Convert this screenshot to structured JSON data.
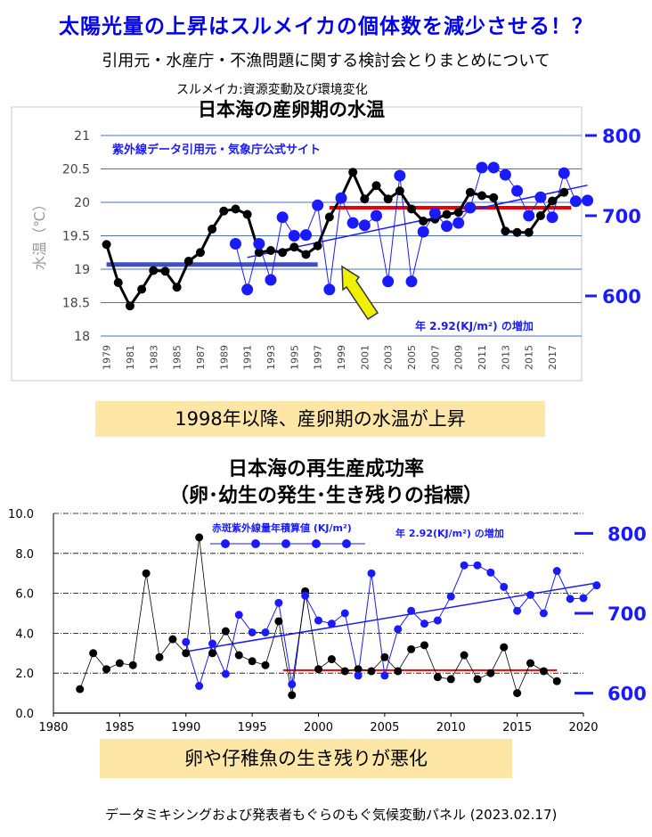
{
  "header": {
    "title": "太陽光量の上昇はスルメイカの個体数を減少させる！？",
    "subtitle": "引用元・水産庁・不漁問題に関する検討会とりまとめについて",
    "source": "スルメイカ:資源変動及び環境変化"
  },
  "banners": {
    "top": "1998年以降、産卵期の水温が上昇",
    "bottom": "卵や仔稚魚の生き残りが悪化"
  },
  "chart2_heading": {
    "line1": "日本海の再生産成功率",
    "line2": "（卵･幼生の発生･生き残りの指標）"
  },
  "footer": "データミキシングおよび発表者もぐらのもぐ気候変動パネル (2023.02.17)",
  "colors": {
    "temperature_line": "#000000",
    "uv_line": "#1a1aff",
    "pre1998_mean": "#4050c0",
    "post1998_mean": "#ee0000",
    "arrow": "#f0f000",
    "banner": "#fde6a6",
    "title": "#0000ee"
  },
  "chart_data": [
    {
      "type": "line",
      "title": "日本海の産卵期の水温",
      "annotation_source": "紫外線データ引用元・気象庁公式サイト",
      "annotation_increase": "年 2.92(KJ/m²) の増加",
      "ylabel": "水温（℃）",
      "ylim": [
        18,
        21
      ],
      "y_ticks": [
        "21",
        "20.5",
        "20",
        "19.5",
        "19",
        "18.5",
        "18"
      ],
      "y2lim": [
        550,
        800
      ],
      "y2_ticks": [
        "800",
        "700",
        "600"
      ],
      "x_tick_labels": [
        "1979",
        "1981",
        "1983",
        "1985",
        "1987",
        "1989",
        "1991",
        "1993",
        "1995",
        "1997",
        "1999",
        "2001",
        "2003",
        "2005",
        "2007",
        "2009",
        "2011",
        "2013",
        "2015",
        "2017"
      ],
      "grid": true,
      "series": [
        {
          "axis": "left",
          "x": [
            1979,
            1980,
            1981,
            1982,
            1983,
            1984,
            1985,
            1986,
            1987,
            1988,
            1989,
            1990,
            1991,
            1992,
            1993,
            1994,
            1995,
            1996,
            1997,
            1998,
            1999,
            2000,
            2001,
            2002,
            2003,
            2004,
            2005,
            2006,
            2007,
            2008,
            2009,
            2010,
            2011,
            2012,
            2013,
            2014,
            2015,
            2016,
            2017,
            2018
          ],
          "values": [
            19.37,
            18.8,
            18.45,
            18.7,
            18.98,
            18.97,
            18.73,
            19.12,
            19.25,
            19.6,
            19.87,
            19.9,
            19.82,
            19.25,
            19.28,
            19.25,
            19.33,
            19.22,
            19.35,
            19.78,
            20.07,
            20.45,
            20.05,
            20.25,
            20.05,
            20.17,
            19.9,
            19.72,
            19.75,
            19.82,
            19.85,
            20.15,
            20.1,
            20.07,
            19.57,
            19.55,
            19.55,
            19.8,
            20.02,
            20.15
          ]
        },
        {
          "axis": "right",
          "x": [
            1990,
            1991,
            1992,
            1993,
            1994,
            1995,
            1996,
            1997,
            1998,
            1999,
            2000,
            2001,
            2002,
            2003,
            2004,
            2005,
            2006,
            2007,
            2008,
            2009,
            2010,
            2011,
            2012,
            2013,
            2014,
            2015,
            2016,
            2017,
            2018,
            2019,
            2020
          ],
          "values": [
            665,
            608,
            665,
            620,
            698,
            675,
            676,
            713,
            608,
            722,
            691,
            688,
            700,
            618,
            750,
            618,
            680,
            703,
            687,
            691,
            710,
            760,
            760,
            751,
            731,
            700,
            723,
            698,
            753,
            718,
            719
          ]
        }
      ],
      "trend": {
        "axis": "right",
        "from": [
          1991,
          648
        ],
        "to": [
          2020,
          738
        ]
      },
      "mean_pre1998": {
        "axis": "left",
        "value": 19.07,
        "from": 1979,
        "to": 1997
      },
      "mean_post1998": {
        "axis": "left",
        "value": 19.92,
        "from": 1998,
        "to": 2018
      }
    },
    {
      "type": "line",
      "title": "日本海の再生産成功率",
      "legend": "赤斑紫外線量年積算値 (KJ/m²)",
      "annotation_increase": "年 2.92(KJ/m²) の増加",
      "xlim": [
        1980,
        2020
      ],
      "x_ticks": [
        "1980",
        "1985",
        "1990",
        "1995",
        "2000",
        "2005",
        "2010",
        "2015",
        "2020"
      ],
      "ylim": [
        0,
        10
      ],
      "y_ticks": [
        "10.0",
        "8.0",
        "6.0",
        "4.0",
        "2.0",
        "0.0"
      ],
      "y2lim": [
        575,
        825
      ],
      "y2_ticks": [
        "800",
        "700",
        "600"
      ],
      "grid": true,
      "series": [
        {
          "axis": "left",
          "x": [
            1982,
            1983,
            1984,
            1985,
            1986,
            1987,
            1988,
            1989,
            1990,
            1991,
            1992,
            1993,
            1994,
            1995,
            1996,
            1997,
            1998,
            1999,
            2000,
            2001,
            2002,
            2003,
            2004,
            2005,
            2006,
            2007,
            2008,
            2009,
            2010,
            2011,
            2012,
            2013,
            2014,
            2015,
            2016,
            2017,
            2018
          ],
          "values": [
            1.2,
            3.0,
            2.2,
            2.5,
            2.4,
            7.0,
            2.8,
            3.7,
            3.0,
            8.8,
            3.0,
            4.1,
            2.9,
            2.6,
            2.4,
            4.6,
            0.9,
            6.1,
            2.2,
            2.7,
            2.1,
            2.2,
            2.1,
            2.8,
            2.1,
            3.2,
            3.4,
            1.8,
            1.7,
            2.9,
            1.7,
            2.0,
            3.3,
            1.0,
            2.5,
            2.1,
            1.6
          ]
        },
        {
          "axis": "right",
          "x": [
            1990,
            1991,
            1992,
            1993,
            1994,
            1995,
            1996,
            1997,
            1998,
            1999,
            2000,
            2001,
            2002,
            2003,
            2004,
            2005,
            2006,
            2007,
            2008,
            2009,
            2010,
            2011,
            2012,
            2013,
            2014,
            2015,
            2016,
            2017,
            2018,
            2019,
            2020,
            2021
          ],
          "values": [
            664,
            609,
            662,
            624,
            698,
            676,
            676,
            713,
            611,
            722,
            691,
            687,
            700,
            622,
            750,
            622,
            680,
            703,
            687,
            691,
            721,
            760,
            760,
            751,
            733,
            703,
            723,
            700,
            753,
            718,
            719,
            735
          ]
        }
      ],
      "legend_markers_count": 5,
      "trend": {
        "axis": "right",
        "from": [
          1990,
          652
        ],
        "to": [
          2021,
          738
        ]
      },
      "mean_post1998": {
        "axis": "left",
        "value": 2.15,
        "from": 1998,
        "to": 2018
      }
    }
  ]
}
